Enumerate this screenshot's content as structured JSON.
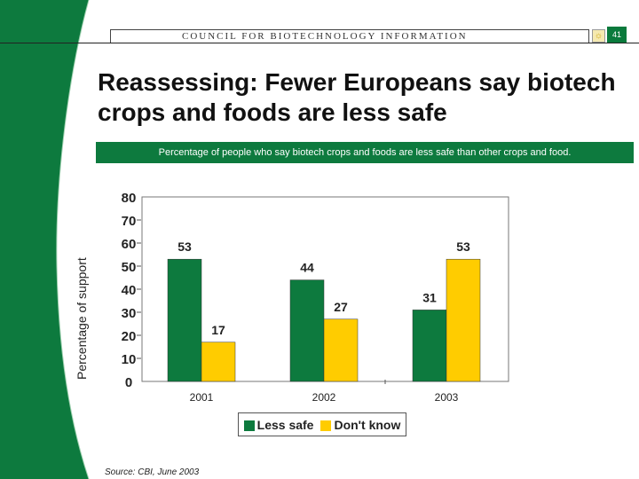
{
  "header": {
    "org": "COUNCIL FOR BIOTECHNOLOGY INFORMATION",
    "page_number": "41"
  },
  "title": "Reassessing:  Fewer Europeans say biotech crops and foods are less safe",
  "subtitle": "Percentage of people who say biotech crops and foods are less safe than other crops and food.",
  "source": "Source: CBI, June 2003",
  "colors": {
    "green": "#0d7a3e",
    "yellow": "#ffcc00"
  },
  "chart_data": {
    "type": "bar",
    "title": "Percentage of people who say biotech crops and foods are less safe than other crops and food.",
    "ylabel": "Percentage of support",
    "xlabel": "",
    "categories": [
      "2001",
      "2002",
      "2003"
    ],
    "series": [
      {
        "name": "Less safe",
        "values": [
          53,
          44,
          31
        ]
      },
      {
        "name": "Don't know",
        "values": [
          17,
          27,
          53
        ]
      }
    ],
    "ylim": [
      0,
      80
    ],
    "yticks": [
      "0",
      "10",
      "20",
      "30",
      "40",
      "50",
      "60",
      "70",
      "80"
    ],
    "legend": "bottom-center"
  }
}
